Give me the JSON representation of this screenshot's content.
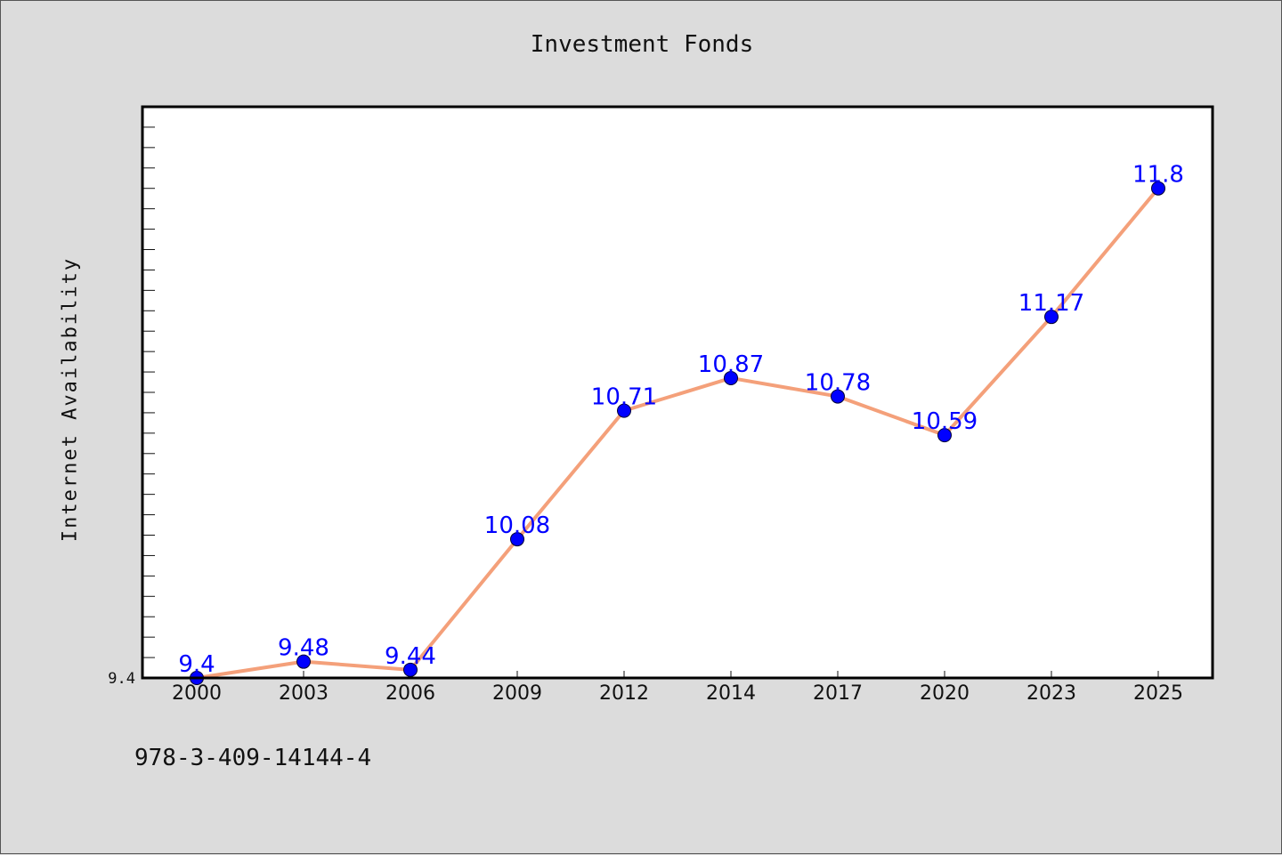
{
  "title": "Investment Fonds",
  "ylabel": "Internet Availability",
  "footnote": "978-3-409-14144-4",
  "colors": {
    "background": "#dcdcdc",
    "plot_background": "#ffffff",
    "line": "#f4a07a",
    "marker": "#0000ff",
    "data_label": "#0000ff"
  },
  "chart_data": {
    "type": "line",
    "title": "Investment Fonds",
    "xlabel": "",
    "ylabel": "Internet Availability",
    "categories": [
      "2000",
      "2003",
      "2006",
      "2009",
      "2012",
      "2014",
      "2017",
      "2020",
      "2023",
      "2025"
    ],
    "series": [
      {
        "values": [
          9.4,
          9.48,
          9.44,
          10.08,
          10.71,
          10.87,
          10.78,
          10.59,
          11.17,
          11.8
        ]
      }
    ],
    "data_labels": [
      "9.4",
      "9.48",
      "9.44",
      "10.08",
      "10.71",
      "10.87",
      "10.78",
      "10.59",
      "11.17",
      "11.8"
    ],
    "ylim": [
      9.4,
      12.2
    ],
    "yticks_labeled": [
      "9.4"
    ],
    "grid": false,
    "legend": "none"
  }
}
